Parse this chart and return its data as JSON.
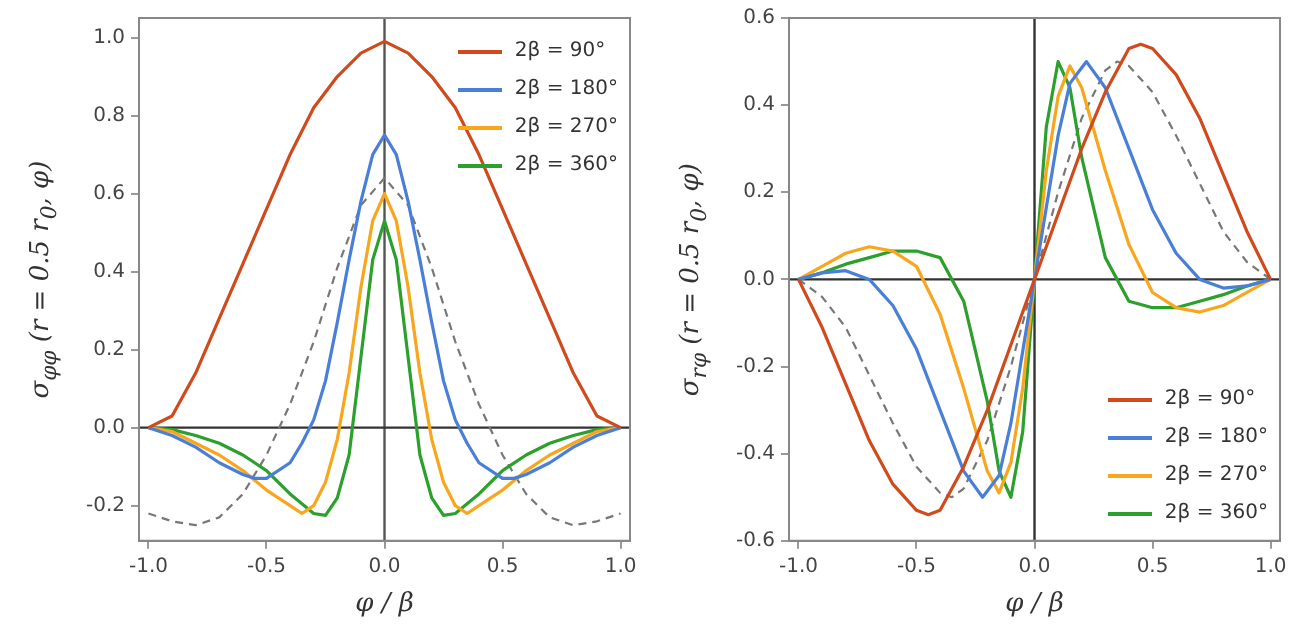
{
  "chart_data": [
    {
      "type": "line",
      "xlabel": "φ / β",
      "ylabel": "σ$_{φφ}$ (r = 0.5 r$_{0}$, φ)",
      "xlim": [
        -1.04,
        1.04
      ],
      "ylim": [
        -0.29,
        1.05
      ],
      "xticks": [
        {
          "value": -1,
          "label": "-1.0"
        },
        {
          "value": -0.5,
          "label": "-0.5"
        },
        {
          "value": 0,
          "label": "0.0"
        },
        {
          "value": 0.5,
          "label": "0.5"
        },
        {
          "value": 1,
          "label": "1.0"
        }
      ],
      "yticks": [
        {
          "value": -0.2,
          "label": "-0.2"
        },
        {
          "value": 0,
          "label": "0.0"
        },
        {
          "value": 0.2,
          "label": "0.2"
        },
        {
          "value": 0.4,
          "label": "0.4"
        },
        {
          "value": 0.6,
          "label": "0.6"
        },
        {
          "value": 0.8,
          "label": "0.8"
        },
        {
          "value": 1,
          "label": "1.0"
        }
      ],
      "grid": false,
      "legend": "top right",
      "marker": "none",
      "line_style": "solid",
      "ref_lines": [
        {
          "axis": "x",
          "value": 0,
          "color": "#555555"
        },
        {
          "axis": "y",
          "value": 0,
          "color": "#333333"
        }
      ],
      "series": [
        {
          "name": "2β = 90°",
          "color": "#d04a1c",
          "x": [
            -1,
            -0.9,
            -0.8,
            -0.7,
            -0.6,
            -0.5,
            -0.4,
            -0.3,
            -0.2,
            -0.1,
            0,
            0.1,
            0.2,
            0.3,
            0.4,
            0.5,
            0.6,
            0.7,
            0.8,
            0.9,
            1
          ],
          "values": [
            0,
            0.03,
            0.14,
            0.28,
            0.42,
            0.56,
            0.7,
            0.82,
            0.9,
            0.96,
            0.99,
            0.96,
            0.9,
            0.82,
            0.7,
            0.56,
            0.42,
            0.28,
            0.14,
            0.03,
            0
          ]
        },
        {
          "name": "2β = 180°",
          "color": "#4a7fd8",
          "x": [
            -1,
            -0.9,
            -0.8,
            -0.7,
            -0.6,
            -0.55,
            -0.5,
            -0.4,
            -0.35,
            -0.3,
            -0.25,
            -0.2,
            -0.15,
            -0.1,
            -0.05,
            0,
            0.05,
            0.1,
            0.15,
            0.2,
            0.25,
            0.3,
            0.35,
            0.4,
            0.5,
            0.55,
            0.6,
            0.7,
            0.8,
            0.9,
            1
          ],
          "values": [
            0,
            -0.02,
            -0.05,
            -0.09,
            -0.12,
            -0.13,
            -0.13,
            -0.09,
            -0.04,
            0.02,
            0.12,
            0.27,
            0.43,
            0.58,
            0.7,
            0.75,
            0.7,
            0.58,
            0.43,
            0.27,
            0.12,
            0.02,
            -0.04,
            -0.09,
            -0.13,
            -0.13,
            -0.12,
            -0.09,
            -0.05,
            -0.02,
            0
          ]
        },
        {
          "name": "2β = 270°",
          "color": "#f8a61e",
          "x": [
            -1,
            -0.9,
            -0.8,
            -0.7,
            -0.6,
            -0.5,
            -0.4,
            -0.35,
            -0.3,
            -0.25,
            -0.2,
            -0.15,
            -0.1,
            -0.05,
            0,
            0.05,
            0.1,
            0.15,
            0.2,
            0.25,
            0.3,
            0.35,
            0.4,
            0.5,
            0.6,
            0.7,
            0.8,
            0.9,
            1
          ],
          "values": [
            0,
            -0.01,
            -0.04,
            -0.07,
            -0.11,
            -0.16,
            -0.2,
            -0.22,
            -0.2,
            -0.14,
            -0.03,
            0.14,
            0.36,
            0.53,
            0.6,
            0.53,
            0.36,
            0.14,
            -0.03,
            -0.14,
            -0.2,
            -0.22,
            -0.2,
            -0.16,
            -0.11,
            -0.07,
            -0.04,
            -0.01,
            0
          ]
        },
        {
          "name": "2β = 360°",
          "color": "#2ca02c",
          "x": [
            -1,
            -0.9,
            -0.8,
            -0.7,
            -0.6,
            -0.5,
            -0.4,
            -0.3,
            -0.25,
            -0.2,
            -0.15,
            -0.1,
            -0.05,
            0,
            0.05,
            0.1,
            0.15,
            0.2,
            0.25,
            0.3,
            0.4,
            0.5,
            0.6,
            0.7,
            0.8,
            0.9,
            1
          ],
          "values": [
            0,
            -0.005,
            -0.02,
            -0.04,
            -0.07,
            -0.11,
            -0.17,
            -0.22,
            -0.225,
            -0.18,
            -0.07,
            0.18,
            0.43,
            0.53,
            0.43,
            0.18,
            -0.07,
            -0.18,
            -0.225,
            -0.22,
            -0.17,
            -0.11,
            -0.07,
            -0.04,
            -0.02,
            -0.005,
            0
          ]
        },
        {
          "color": "#777777",
          "line_style": "dashed",
          "x": [
            -1,
            -0.9,
            -0.8,
            -0.7,
            -0.6,
            -0.5,
            -0.4,
            -0.3,
            -0.2,
            -0.1,
            0,
            0.1,
            0.2,
            0.3,
            0.4,
            0.5,
            0.6,
            0.7,
            0.8,
            0.9,
            1
          ],
          "values": [
            -0.22,
            -0.24,
            -0.25,
            -0.23,
            -0.17,
            -0.07,
            0.06,
            0.22,
            0.41,
            0.57,
            0.64,
            0.57,
            0.41,
            0.22,
            0.06,
            -0.07,
            -0.17,
            -0.23,
            -0.25,
            -0.24,
            -0.22
          ]
        }
      ]
    },
    {
      "type": "line",
      "xlabel": "φ / β",
      "ylabel": "σ$_{rφ}$ (r = 0.5 r$_{0}$, φ)",
      "xlim": [
        -1.04,
        1.04
      ],
      "ylim": [
        -0.6,
        0.6
      ],
      "xticks": [
        {
          "value": -1,
          "label": "-1.0"
        },
        {
          "value": -0.5,
          "label": "-0.5"
        },
        {
          "value": 0,
          "label": "0.0"
        },
        {
          "value": 0.5,
          "label": "0.5"
        },
        {
          "value": 1,
          "label": "1.0"
        }
      ],
      "yticks": [
        {
          "value": -0.6,
          "label": "-0.6"
        },
        {
          "value": -0.4,
          "label": "-0.4"
        },
        {
          "value": -0.2,
          "label": "-0.2"
        },
        {
          "value": 0,
          "label": "0.0"
        },
        {
          "value": 0.2,
          "label": "0.2"
        },
        {
          "value": 0.4,
          "label": "0.4"
        },
        {
          "value": 0.6,
          "label": "0.6"
        }
      ],
      "grid": false,
      "legend": "bottom right",
      "marker": "none",
      "line_style": "solid",
      "ref_lines": [
        {
          "axis": "x",
          "value": 0,
          "color": "#333333"
        },
        {
          "axis": "y",
          "value": 0,
          "color": "#333333"
        }
      ],
      "series": [
        {
          "name": "2β = 90°",
          "color": "#d04a1c",
          "x": [
            -1,
            -0.9,
            -0.8,
            -0.7,
            -0.6,
            -0.5,
            -0.45,
            -0.4,
            -0.3,
            -0.2,
            -0.1,
            0,
            0.1,
            0.2,
            0.3,
            0.4,
            0.45,
            0.5,
            0.6,
            0.7,
            0.8,
            0.9,
            1
          ],
          "values": [
            0,
            -0.11,
            -0.24,
            -0.37,
            -0.47,
            -0.53,
            -0.54,
            -0.53,
            -0.43,
            -0.3,
            -0.15,
            0,
            0.15,
            0.3,
            0.43,
            0.53,
            0.54,
            0.53,
            0.47,
            0.37,
            0.24,
            0.11,
            0
          ]
        },
        {
          "name": "2β = 180°",
          "color": "#4a7fd8",
          "x": [
            -1,
            -0.9,
            -0.8,
            -0.7,
            -0.6,
            -0.5,
            -0.4,
            -0.3,
            -0.22,
            -0.15,
            -0.1,
            0,
            0.1,
            0.15,
            0.22,
            0.3,
            0.4,
            0.5,
            0.6,
            0.7,
            0.8,
            0.9,
            1
          ],
          "values": [
            0,
            0.015,
            0.02,
            0,
            -0.06,
            -0.16,
            -0.3,
            -0.44,
            -0.5,
            -0.45,
            -0.33,
            0,
            0.33,
            0.45,
            0.5,
            0.44,
            0.3,
            0.16,
            0.06,
            0,
            -0.02,
            -0.015,
            0
          ]
        },
        {
          "name": "2β = 270°",
          "color": "#f8a61e",
          "x": [
            -1,
            -0.9,
            -0.8,
            -0.7,
            -0.6,
            -0.5,
            -0.4,
            -0.3,
            -0.2,
            -0.15,
            -0.1,
            -0.05,
            0,
            0.05,
            0.1,
            0.15,
            0.2,
            0.3,
            0.4,
            0.5,
            0.6,
            0.7,
            0.8,
            0.9,
            1
          ],
          "values": [
            0,
            0.03,
            0.06,
            0.075,
            0.065,
            0.03,
            -0.08,
            -0.25,
            -0.44,
            -0.49,
            -0.42,
            -0.25,
            0,
            0.25,
            0.42,
            0.49,
            0.44,
            0.25,
            0.08,
            -0.03,
            -0.065,
            -0.075,
            -0.06,
            -0.03,
            0
          ]
        },
        {
          "name": "2β = 360°",
          "color": "#2ca02c",
          "x": [
            -1,
            -0.9,
            -0.8,
            -0.7,
            -0.6,
            -0.5,
            -0.4,
            -0.3,
            -0.2,
            -0.15,
            -0.1,
            -0.05,
            0,
            0.05,
            0.1,
            0.15,
            0.2,
            0.3,
            0.4,
            0.5,
            0.6,
            0.7,
            0.8,
            0.9,
            1
          ],
          "values": [
            0,
            0.015,
            0.035,
            0.05,
            0.065,
            0.065,
            0.05,
            -0.05,
            -0.28,
            -0.44,
            -0.5,
            -0.35,
            0,
            0.35,
            0.5,
            0.44,
            0.28,
            0.05,
            -0.05,
            -0.065,
            -0.065,
            -0.05,
            -0.035,
            -0.015,
            0
          ]
        },
        {
          "color": "#777777",
          "line_style": "dashed",
          "x": [
            -1,
            -0.9,
            -0.8,
            -0.7,
            -0.6,
            -0.5,
            -0.4,
            -0.35,
            -0.3,
            -0.2,
            -0.1,
            0,
            0.1,
            0.2,
            0.3,
            0.35,
            0.4,
            0.5,
            0.6,
            0.7,
            0.8,
            0.9,
            1
          ],
          "values": [
            0,
            -0.04,
            -0.11,
            -0.22,
            -0.33,
            -0.43,
            -0.49,
            -0.5,
            -0.48,
            -0.37,
            -0.2,
            0,
            0.2,
            0.37,
            0.48,
            0.5,
            0.49,
            0.43,
            0.33,
            0.22,
            0.11,
            0.04,
            0
          ]
        }
      ]
    }
  ]
}
